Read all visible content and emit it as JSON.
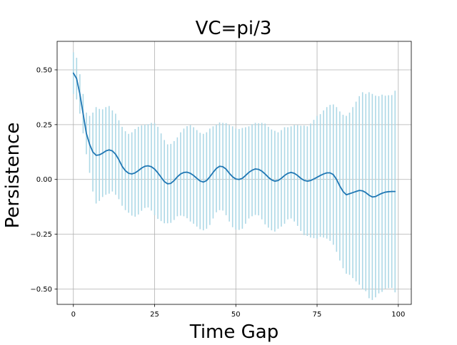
{
  "chart_data": {
    "type": "line",
    "title": "VC=pi/3",
    "xlabel": "Time Gap",
    "ylabel": "Persistence",
    "xlim": [
      -5,
      104
    ],
    "ylim": [
      -0.57,
      0.63
    ],
    "xticks": [
      0,
      25,
      50,
      75,
      100
    ],
    "yticks": [
      -0.5,
      -0.25,
      0.0,
      0.25,
      0.5
    ],
    "xtick_labels": [
      "0",
      "25",
      "50",
      "75",
      "100"
    ],
    "ytick_labels": [
      "−0.50",
      "−0.25",
      "0.00",
      "0.25",
      "0.50"
    ],
    "grid": true,
    "legend": "none",
    "colors": {
      "line": "#1f77b4",
      "errorbar": "#add8e6",
      "grid": "#b0b0b0",
      "frame": "#000000"
    },
    "series": [
      {
        "x": [
          0,
          1,
          2,
          3,
          4,
          5,
          6,
          7,
          8,
          9,
          10,
          11,
          12,
          13,
          14,
          15,
          16,
          17,
          18,
          19,
          20,
          21,
          22,
          23,
          24,
          25,
          26,
          27,
          28,
          29,
          30,
          31,
          32,
          33,
          34,
          35,
          36,
          37,
          38,
          39,
          40,
          41,
          42,
          43,
          44,
          45,
          46,
          47,
          48,
          49,
          50,
          51,
          52,
          53,
          54,
          55,
          56,
          57,
          58,
          59,
          60,
          61,
          62,
          63,
          64,
          65,
          66,
          67,
          68,
          69,
          70,
          71,
          72,
          73,
          74,
          75,
          76,
          77,
          78,
          79,
          80,
          81,
          82,
          83,
          84,
          85,
          86,
          87,
          88,
          89,
          90,
          91,
          92,
          93,
          94,
          95,
          96,
          97,
          98,
          99
        ],
        "y": [
          0.485,
          0.46,
          0.39,
          0.3,
          0.21,
          0.16,
          0.125,
          0.11,
          0.112,
          0.12,
          0.13,
          0.135,
          0.13,
          0.115,
          0.09,
          0.06,
          0.04,
          0.028,
          0.025,
          0.03,
          0.04,
          0.052,
          0.06,
          0.062,
          0.058,
          0.047,
          0.03,
          0.01,
          -0.01,
          -0.02,
          -0.018,
          -0.005,
          0.012,
          0.025,
          0.032,
          0.033,
          0.028,
          0.018,
          0.005,
          -0.007,
          -0.012,
          -0.005,
          0.012,
          0.032,
          0.05,
          0.06,
          0.058,
          0.047,
          0.028,
          0.012,
          0.002,
          0,
          0.005,
          0.018,
          0.032,
          0.042,
          0.048,
          0.046,
          0.038,
          0.025,
          0.01,
          -0.002,
          -0.008,
          -0.005,
          0.005,
          0.018,
          0.028,
          0.032,
          0.028,
          0.018,
          0.005,
          -0.004,
          -0.008,
          -0.005,
          0.002,
          0.01,
          0.018,
          0.025,
          0.03,
          0.03,
          0.022,
          0,
          -0.03,
          -0.055,
          -0.07,
          -0.065,
          -0.06,
          -0.055,
          -0.05,
          -0.052,
          -0.06,
          -0.072,
          -0.08,
          -0.078,
          -0.07,
          -0.063,
          -0.058,
          -0.056,
          -0.055,
          -0.055
        ],
        "err": [
          0.095,
          0.095,
          0.09,
          0.09,
          0.095,
          0.13,
          0.18,
          0.22,
          0.21,
          0.2,
          0.2,
          0.2,
          0.185,
          0.185,
          0.18,
          0.18,
          0.18,
          0.18,
          0.19,
          0.2,
          0.2,
          0.195,
          0.19,
          0.19,
          0.2,
          0.21,
          0.21,
          0.2,
          0.19,
          0.18,
          0.18,
          0.18,
          0.18,
          0.19,
          0.2,
          0.21,
          0.22,
          0.22,
          0.22,
          0.22,
          0.22,
          0.22,
          0.22,
          0.21,
          0.2,
          0.2,
          0.2,
          0.21,
          0.22,
          0.23,
          0.23,
          0.23,
          0.23,
          0.22,
          0.21,
          0.21,
          0.21,
          0.21,
          0.22,
          0.23,
          0.23,
          0.23,
          0.23,
          0.22,
          0.22,
          0.22,
          0.21,
          0.21,
          0.22,
          0.23,
          0.24,
          0.25,
          0.25,
          0.26,
          0.27,
          0.28,
          0.28,
          0.29,
          0.3,
          0.31,
          0.32,
          0.33,
          0.34,
          0.35,
          0.36,
          0.37,
          0.39,
          0.41,
          0.43,
          0.45,
          0.45,
          0.47,
          0.47,
          0.46,
          0.45,
          0.45,
          0.44,
          0.44,
          0.44,
          0.46
        ]
      }
    ]
  }
}
